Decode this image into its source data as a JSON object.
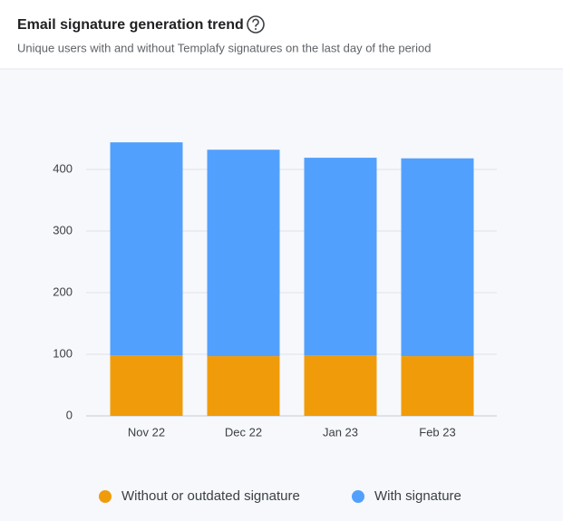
{
  "chart_data": {
    "type": "stacked_bar",
    "title": "Email signature generation trend",
    "subtitle": "Unique users with and without Templafy signatures on the last day of the period",
    "categories": [
      "Nov 22",
      "Dec 22",
      "Jan 23",
      "Feb 23"
    ],
    "series": [
      {
        "name": "Without or outdated signature",
        "color": "#f09c0a",
        "values": [
          98,
          97,
          98,
          97
        ]
      },
      {
        "name": "With signature",
        "color": "#52a0fd",
        "values": [
          346,
          335,
          321,
          321
        ]
      }
    ],
    "ylim": [
      0,
      450
    ],
    "yticks": [
      0,
      100,
      200,
      300,
      400
    ],
    "grid": true,
    "legend": "bottom"
  }
}
